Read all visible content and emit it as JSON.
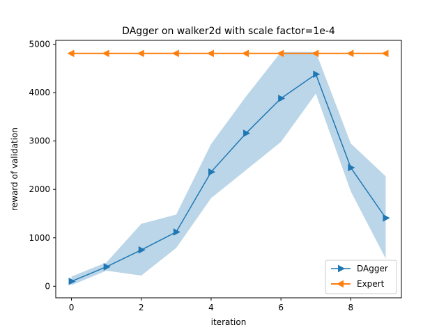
{
  "chart_data": {
    "type": "line",
    "title": "DAgger on walker2d with scale factor=1e-4",
    "xlabel": "iteration",
    "ylabel": "reward of validation",
    "xlim": [
      -0.45,
      9.45
    ],
    "ylim": [
      -240,
      5080
    ],
    "xticks": [
      0,
      2,
      4,
      6,
      8
    ],
    "yticks": [
      0,
      1000,
      2000,
      3000,
      4000,
      5000
    ],
    "x": [
      0,
      1,
      2,
      3,
      4,
      5,
      6,
      7,
      8,
      9
    ],
    "series": [
      {
        "name": "DAgger",
        "color": "#1f77b4",
        "marker": "triangle-right",
        "values": [
          100,
          400,
          750,
          1120,
          2360,
          3160,
          3880,
          4380,
          2450,
          1410
        ],
        "band_lower": [
          20,
          320,
          220,
          790,
          1820,
          2400,
          2980,
          3980,
          1960,
          570
        ],
        "band_upper": [
          200,
          490,
          1290,
          1480,
          2940,
          3920,
          4840,
          4840,
          2950,
          2270
        ],
        "band_color": "#1f77b4"
      },
      {
        "name": "Expert",
        "color": "#ff7f0e",
        "marker": "triangle-left",
        "values": [
          4810,
          4810,
          4810,
          4810,
          4810,
          4810,
          4810,
          4810,
          4810,
          4810
        ]
      }
    ],
    "legend_position": "lower-right",
    "grid": false
  }
}
